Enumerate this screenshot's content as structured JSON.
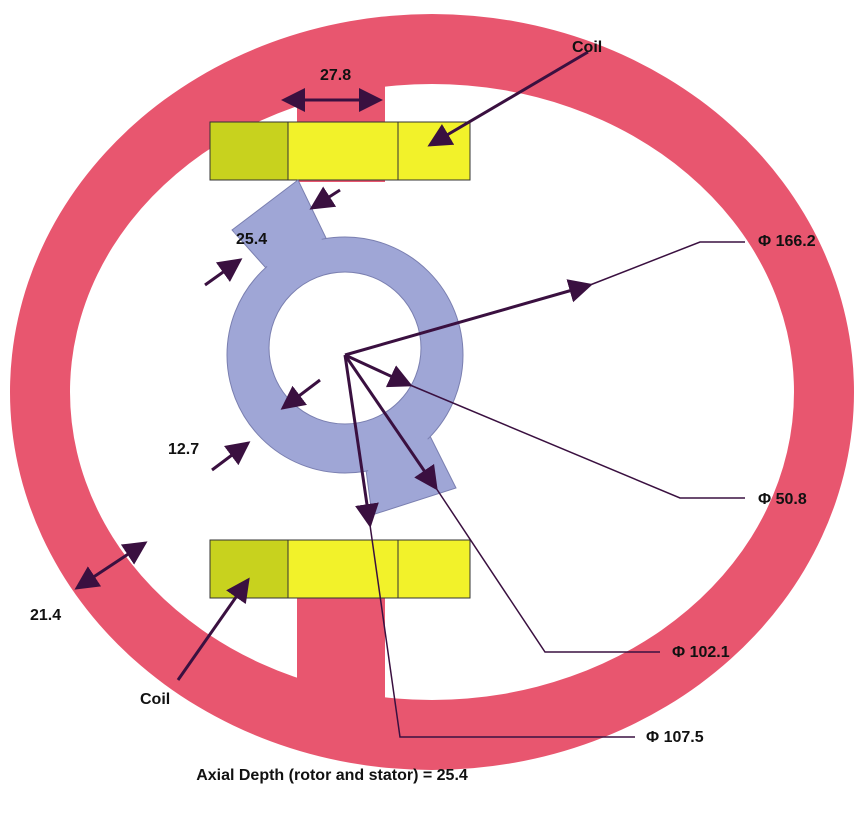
{
  "coils": [
    {
      "label": "Coil"
    },
    {
      "label": "Coil"
    }
  ],
  "dimensions": [
    {
      "label": "27.8"
    },
    {
      "label": "25.4"
    },
    {
      "label": "Φ 166.2"
    },
    {
      "label": "Φ 50.8"
    },
    {
      "label": "12.7"
    },
    {
      "label": "21.4"
    },
    {
      "label": "Φ 102.1"
    },
    {
      "label": "Φ 107.5"
    }
  ],
  "caption": "Axial Depth (rotor and stator) = 25.4"
}
